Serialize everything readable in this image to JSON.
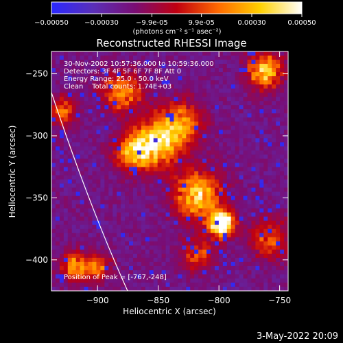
{
  "colorbar": {
    "ticks": [
      "-0.00050",
      "-0.00030",
      "-9.9e-05",
      "9.9e-05",
      "0.00030",
      "0.00050"
    ],
    "units": "(photons cm⁻² s⁻¹ asec⁻²)",
    "range": [
      -0.0005,
      0.0005
    ],
    "palette_stops": [
      "#2a28ff",
      "#5a2fb8",
      "#7a0d74",
      "#c00010",
      "#ff6a00",
      "#ffd000",
      "#ffffff"
    ]
  },
  "chart_data": {
    "type": "heatmap",
    "title": "Reconstructed RHESSI Image",
    "xlabel": "Heliocentric X (arcsec)",
    "ylabel": "Heliocentric Y (arcsec)",
    "xlim": [
      -938,
      -743
    ],
    "ylim": [
      -425,
      -232
    ],
    "x_ticks": [
      -900,
      -850,
      -800,
      -750
    ],
    "x_tick_labels": [
      "−900",
      "−850",
      "−800",
      "−750"
    ],
    "y_ticks": [
      -250,
      -300,
      -350,
      -400
    ],
    "y_tick_labels": [
      "−250",
      "−300",
      "−350",
      "−400"
    ],
    "annotations": [
      "30-Nov-2002 10:57:36.000 to 10:59:36.000",
      "Detectors: 3F 4F 5F 6F 7F 8F Att 0",
      "Energy Range: 25.0 - 50.0 keV",
      "Clean    Total counts: 1.74E+03"
    ],
    "peak_label": "Position of Peak = [-767,-248]",
    "peak_position": [
      -767,
      -248
    ],
    "limb_color": "#ffffff"
  },
  "footer": {
    "date": "3-May-2022 20:09"
  }
}
